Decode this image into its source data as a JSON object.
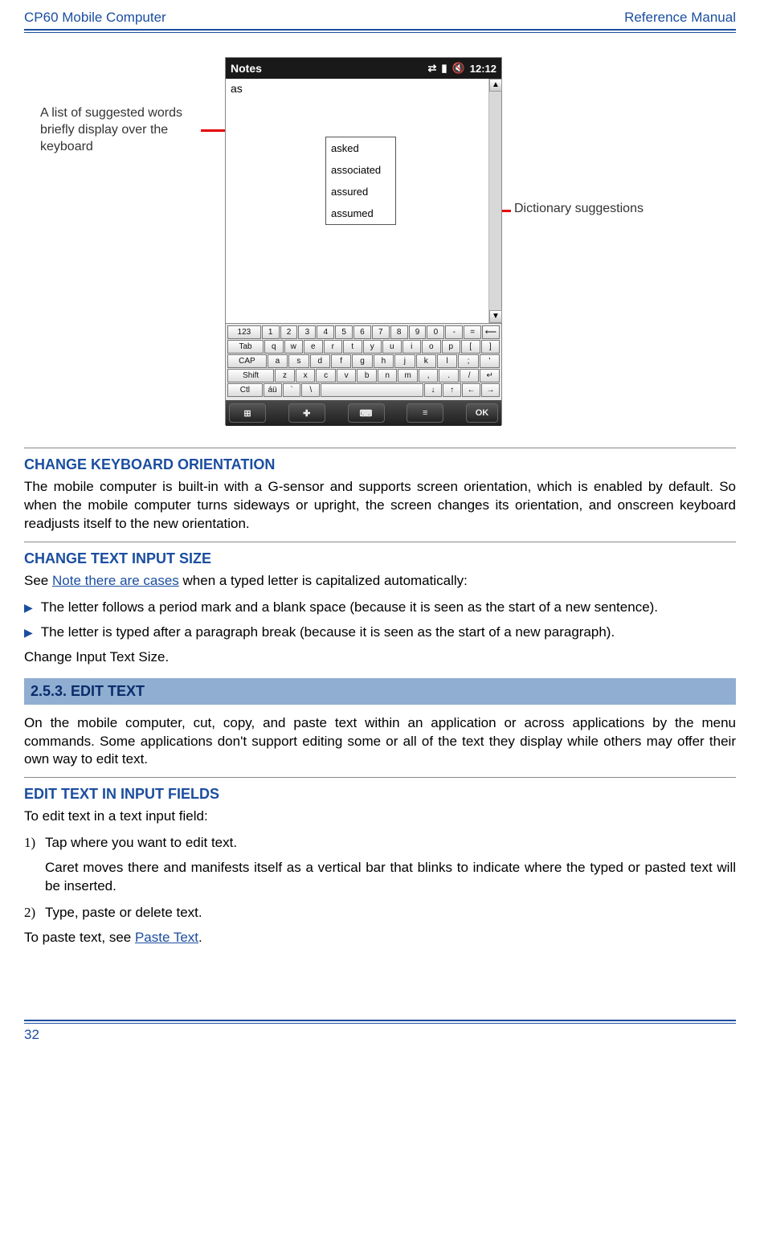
{
  "header": {
    "left": "CP60 Mobile Computer",
    "right": "Reference Manual"
  },
  "fig": {
    "callout_left": "A list of suggested words briefly display over the keyboard",
    "callout_right": "Dictionary suggestions",
    "phone": {
      "title": "Notes",
      "time": "12:12",
      "typed": "as",
      "suggestions": [
        "asked",
        "associated",
        "assured",
        "assumed"
      ],
      "kb": {
        "row1": [
          "123",
          "1",
          "2",
          "3",
          "4",
          "5",
          "6",
          "7",
          "8",
          "9",
          "0",
          "-",
          "=",
          "⟵"
        ],
        "row2": [
          "Tab",
          "q",
          "w",
          "e",
          "r",
          "t",
          "y",
          "u",
          "i",
          "o",
          "p",
          "[",
          "]"
        ],
        "row3": [
          "CAP",
          "a",
          "s",
          "d",
          "f",
          "g",
          "h",
          "j",
          "k",
          "l",
          ";",
          "'"
        ],
        "row4": [
          "Shift",
          "z",
          "x",
          "c",
          "v",
          "b",
          "n",
          "m",
          ",",
          ".",
          "/",
          "↵"
        ],
        "row5": [
          "Ctl",
          "áü",
          "`",
          "\\",
          " ",
          "↓",
          "↑",
          "←",
          "→"
        ]
      },
      "ok": "OK"
    }
  },
  "sec1": {
    "title": "CHANGE KEYBOARD ORIENTATION",
    "p": "The mobile computer is built-in with a G-sensor and supports screen orientation, which is enabled by default. So when the mobile computer turns sideways or upright, the screen changes its orientation, and onscreen keyboard readjusts itself to the new orientation."
  },
  "sec2": {
    "title": "CHANGE TEXT INPUT SIZE",
    "intro_pre": "See ",
    "intro_link": "Note there are cases",
    "intro_post": " when a typed letter is capitalized automatically:",
    "b1": "The letter follows a period mark and a blank space (because it is seen as the start of a new sentence).",
    "b2": "The letter is typed after a paragraph break (because it is seen as the start of a new paragraph).",
    "tail": "Change Input Text Size."
  },
  "band": "2.5.3. EDIT TEXT",
  "sec3p": "On the mobile computer, cut, copy, and paste text within an application or across applications by the menu commands. Some applications don't support editing some or all of the text they display while others may offer their own way to edit text.",
  "sec4": {
    "title": "EDIT TEXT IN INPUT FIELDS",
    "lead": "To edit text in a text input field:",
    "i1": "Tap where you want to edit text.",
    "i1b": "Caret moves there and manifests itself as a vertical bar that blinks to indicate where the typed or pasted text will be inserted.",
    "i2": "Type, paste or delete text.",
    "tail_pre": "To paste text, see ",
    "tail_link": "Paste Text",
    "tail_post": "."
  },
  "page": "32"
}
